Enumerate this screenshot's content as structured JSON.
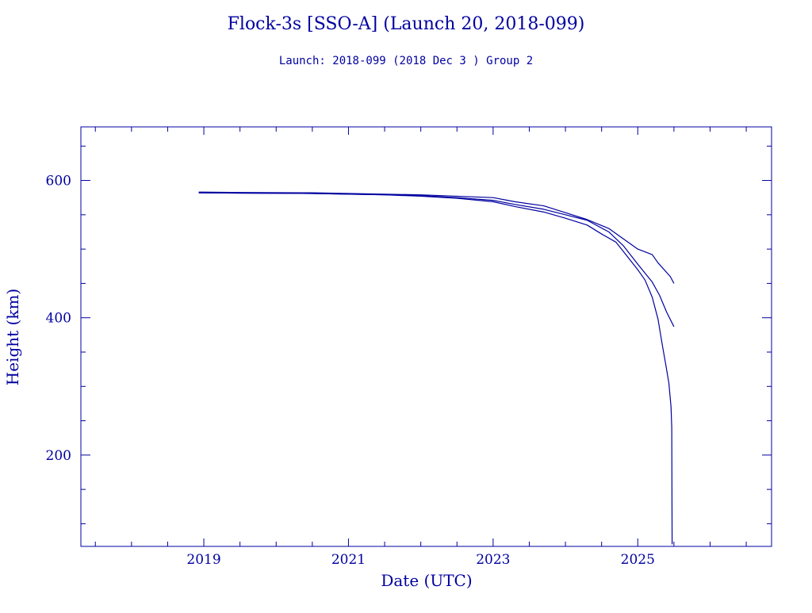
{
  "colors": {
    "ink": "#0000a0",
    "background": "#ffffff"
  },
  "chart_data": {
    "type": "line",
    "title": "Flock-3s [SSO-A] (Launch 20, 2018-099)",
    "subtitle": "Launch: 2018-099  (2018 Dec  3 )  Group 2",
    "xlabel": "Date (UTC)",
    "ylabel": "Height (km)",
    "xlim": [
      2017.3,
      2026.85
    ],
    "ylim": [
      67,
      678
    ],
    "x_ticks": [
      2019,
      2021,
      2023,
      2025
    ],
    "x_tick_labels": [
      "2019",
      "2021",
      "2023",
      "2025"
    ],
    "x_minor_step": 0.5,
    "y_ticks": [
      200,
      400,
      600
    ],
    "y_tick_labels": [
      "200",
      "400",
      "600"
    ],
    "y_minor_step": 50,
    "grid": false,
    "series": [
      {
        "values": [
          [
            2018.93,
            583
          ],
          [
            2019.5,
            582.5
          ],
          [
            2020.5,
            582
          ],
          [
            2021.5,
            580
          ],
          [
            2022.0,
            579
          ],
          [
            2022.5,
            577
          ],
          [
            2023.0,
            575
          ],
          [
            2023.3,
            569
          ],
          [
            2023.7,
            563
          ],
          [
            2024.0,
            553
          ],
          [
            2024.3,
            543
          ],
          [
            2024.6,
            530
          ],
          [
            2024.8,
            515
          ],
          [
            2025.0,
            500
          ],
          [
            2025.2,
            492
          ],
          [
            2025.28,
            480
          ],
          [
            2025.45,
            460
          ],
          [
            2025.5,
            450
          ]
        ]
      },
      {
        "values": [
          [
            2018.93,
            582
          ],
          [
            2019.5,
            581.5
          ],
          [
            2020.5,
            581
          ],
          [
            2021.5,
            579
          ],
          [
            2022.0,
            578
          ],
          [
            2022.5,
            575
          ],
          [
            2023.0,
            571
          ],
          [
            2023.3,
            565
          ],
          [
            2023.7,
            558
          ],
          [
            2024.0,
            550
          ],
          [
            2024.3,
            542
          ],
          [
            2024.6,
            525
          ],
          [
            2024.8,
            505
          ],
          [
            2025.0,
            478
          ],
          [
            2025.2,
            452
          ],
          [
            2025.3,
            433
          ],
          [
            2025.4,
            408
          ],
          [
            2025.5,
            387
          ]
        ]
      },
      {
        "values": [
          [
            2018.93,
            582
          ],
          [
            2019.5,
            581.5
          ],
          [
            2020.5,
            581
          ],
          [
            2021.5,
            579
          ],
          [
            2022.0,
            577
          ],
          [
            2022.5,
            574
          ],
          [
            2023.0,
            569
          ],
          [
            2023.3,
            562
          ],
          [
            2023.7,
            554
          ],
          [
            2024.0,
            545
          ],
          [
            2024.3,
            535
          ],
          [
            2024.5,
            522
          ],
          [
            2024.7,
            510
          ],
          [
            2024.85,
            490
          ],
          [
            2025.0,
            470
          ],
          [
            2025.1,
            455
          ],
          [
            2025.2,
            430
          ],
          [
            2025.28,
            398
          ],
          [
            2025.34,
            360
          ],
          [
            2025.39,
            330
          ],
          [
            2025.43,
            305
          ],
          [
            2025.46,
            270
          ],
          [
            2025.47,
            240
          ],
          [
            2025.475,
            70
          ]
        ]
      }
    ]
  }
}
